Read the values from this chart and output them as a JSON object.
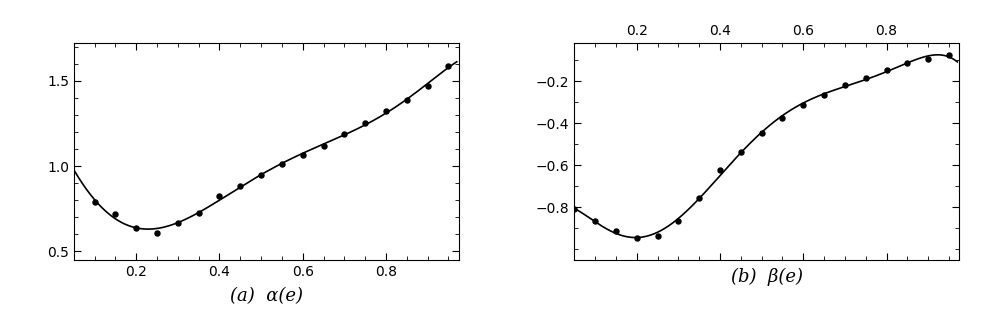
{
  "alpha_scatter_x": [
    0.1,
    0.15,
    0.2,
    0.25,
    0.3,
    0.35,
    0.4,
    0.45,
    0.5,
    0.55,
    0.6,
    0.65,
    0.7,
    0.75,
    0.8,
    0.85,
    0.9,
    0.95
  ],
  "alpha_scatter_y": [
    0.79,
    0.72,
    0.635,
    0.605,
    0.665,
    0.725,
    0.825,
    0.885,
    0.945,
    1.01,
    1.065,
    1.115,
    1.19,
    1.25,
    1.325,
    1.385,
    1.47,
    1.585
  ],
  "beta_scatter_x": [
    0.05,
    0.1,
    0.15,
    0.2,
    0.25,
    0.3,
    0.35,
    0.4,
    0.45,
    0.5,
    0.55,
    0.6,
    0.65,
    0.7,
    0.75,
    0.8,
    0.85,
    0.9,
    0.95
  ],
  "beta_scatter_y": [
    -0.81,
    -0.865,
    -0.915,
    -0.945,
    -0.935,
    -0.865,
    -0.755,
    -0.625,
    -0.535,
    -0.445,
    -0.375,
    -0.315,
    -0.265,
    -0.22,
    -0.183,
    -0.148,
    -0.115,
    -0.094,
    -0.078
  ],
  "alpha_xlim": [
    0.05,
    0.975
  ],
  "alpha_ylim": [
    0.45,
    1.72
  ],
  "alpha_yticks": [
    0.5,
    1.0,
    1.5
  ],
  "alpha_xticks": [
    0.2,
    0.4,
    0.6,
    0.8
  ],
  "beta_xlim": [
    0.05,
    0.975
  ],
  "beta_ylim": [
    -1.05,
    -0.02
  ],
  "beta_yticks": [
    -0.8,
    -0.6,
    -0.4,
    -0.2
  ],
  "beta_xticks": [
    0.2,
    0.4,
    0.6,
    0.8
  ],
  "label_a": "(a)  α(e)",
  "label_b": "(b)  β(e)",
  "line_color": "#000000",
  "scatter_color": "#000000",
  "bg_color": "#ffffff",
  "label_fontsize": 13,
  "tick_labelsize": 10,
  "alpha_poly_degree": 6,
  "beta_poly_degree": 6
}
